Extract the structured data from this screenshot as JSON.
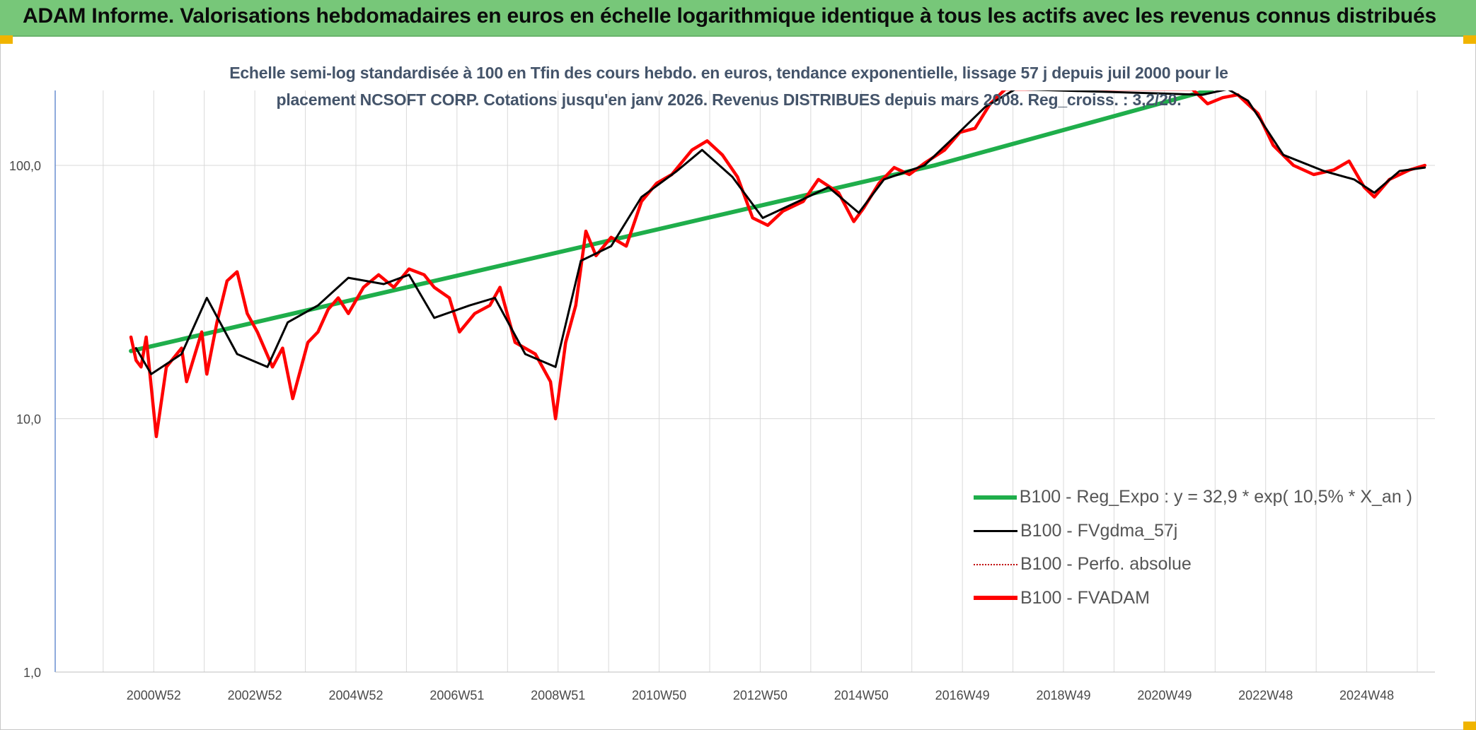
{
  "banner": {
    "title": "ADAM Informe. Valorisations hebdomadaires en euros en échelle logarithmique identique à tous les actifs avec les revenus connus distribués"
  },
  "subtitle": {
    "line1": "Echelle semi-log standardisée à 100 en Tfin des cours hebdo. en euros, tendance exponentielle, lissage 57 j depuis juil 2000 pour le",
    "line2": "placement NCSOFT CORP. Cotations jusqu'en janv 2026. Revenus DISTRIBUES depuis mars 2008. Reg_croiss. : 3,2/20."
  },
  "colors": {
    "banner": "#77c779",
    "regression": "#1fae4b",
    "fvgdma": "#000000",
    "fvadam": "#ff0000",
    "perfo": "#c00000",
    "subtitle": "#44546a"
  },
  "chart_data": {
    "type": "line",
    "y_scale": "log",
    "ylim": [
      1,
      200
    ],
    "y_ticks": [
      "1,0",
      "10,0",
      "100,0"
    ],
    "x_tick_labels": [
      "2000W52",
      "2002W52",
      "2004W52",
      "2006W51",
      "2008W51",
      "2010W50",
      "2012W50",
      "2014W50",
      "2016W49",
      "2018W49",
      "2020W49",
      "2022W48",
      "2024W48"
    ],
    "x_range_years": [
      1999.0,
      2026.3
    ],
    "legend_position": "bottom-right",
    "grid": true,
    "series": [
      {
        "name": "B100 - Reg_Expo : y = 32,9 * exp( 10,5% *  X_an )",
        "key": "regression",
        "points": [
          [
            2000.5,
            18.5
          ],
          [
            2016.4,
            100
          ],
          [
            2021.9,
            200
          ]
        ]
      },
      {
        "name": "B100 - FVgdma_57j",
        "key": "fvgdma",
        "points": [
          [
            2000.6,
            19
          ],
          [
            2000.9,
            15
          ],
          [
            2001.5,
            18
          ],
          [
            2002.0,
            30
          ],
          [
            2002.6,
            18
          ],
          [
            2003.2,
            16
          ],
          [
            2003.6,
            24
          ],
          [
            2004.2,
            28
          ],
          [
            2004.8,
            36
          ],
          [
            2005.5,
            34
          ],
          [
            2006.0,
            37
          ],
          [
            2006.5,
            25
          ],
          [
            2007.2,
            28
          ],
          [
            2007.7,
            30
          ],
          [
            2008.3,
            18
          ],
          [
            2008.9,
            16
          ],
          [
            2009.4,
            42
          ],
          [
            2010.0,
            48
          ],
          [
            2010.6,
            75
          ],
          [
            2011.3,
            95
          ],
          [
            2011.8,
            115
          ],
          [
            2012.4,
            90
          ],
          [
            2013.0,
            62
          ],
          [
            2013.7,
            72
          ],
          [
            2014.3,
            82
          ],
          [
            2014.9,
            65
          ],
          [
            2015.4,
            88
          ],
          [
            2016.2,
            100
          ],
          [
            2016.8,
            130
          ],
          [
            2017.4,
            170
          ],
          [
            2018.0,
            200
          ],
          [
            2021.7,
            190
          ],
          [
            2022.2,
            200
          ],
          [
            2022.6,
            180
          ],
          [
            2023.3,
            110
          ],
          [
            2024.1,
            95
          ],
          [
            2024.7,
            88
          ],
          [
            2025.1,
            78
          ],
          [
            2025.6,
            95
          ],
          [
            2026.1,
            98
          ]
        ]
      },
      {
        "name": "B100 - Perfo. absolue",
        "key": "perfo",
        "points": []
      },
      {
        "name": "B100 - FVADAM",
        "key": "fvadam",
        "points": [
          [
            2000.5,
            21
          ],
          [
            2000.6,
            17
          ],
          [
            2000.7,
            16
          ],
          [
            2000.8,
            21
          ],
          [
            2001.0,
            8.5
          ],
          [
            2001.2,
            16
          ],
          [
            2001.5,
            19
          ],
          [
            2001.6,
            14
          ],
          [
            2001.9,
            22
          ],
          [
            2002.0,
            15
          ],
          [
            2002.2,
            24
          ],
          [
            2002.4,
            35
          ],
          [
            2002.6,
            38
          ],
          [
            2002.8,
            26
          ],
          [
            2003.0,
            22
          ],
          [
            2003.3,
            16
          ],
          [
            2003.5,
            19
          ],
          [
            2003.7,
            12
          ],
          [
            2004.0,
            20
          ],
          [
            2004.2,
            22
          ],
          [
            2004.4,
            27
          ],
          [
            2004.6,
            30
          ],
          [
            2004.8,
            26
          ],
          [
            2005.1,
            33
          ],
          [
            2005.4,
            37
          ],
          [
            2005.7,
            33
          ],
          [
            2006.0,
            39
          ],
          [
            2006.3,
            37
          ],
          [
            2006.5,
            33
          ],
          [
            2006.8,
            30
          ],
          [
            2007.0,
            22
          ],
          [
            2007.3,
            26
          ],
          [
            2007.6,
            28
          ],
          [
            2007.8,
            33
          ],
          [
            2008.1,
            20
          ],
          [
            2008.5,
            18
          ],
          [
            2008.8,
            14
          ],
          [
            2008.9,
            10
          ],
          [
            2009.1,
            20
          ],
          [
            2009.3,
            28
          ],
          [
            2009.5,
            55
          ],
          [
            2009.7,
            44
          ],
          [
            2010.0,
            52
          ],
          [
            2010.3,
            48
          ],
          [
            2010.6,
            72
          ],
          [
            2010.9,
            85
          ],
          [
            2011.2,
            92
          ],
          [
            2011.6,
            115
          ],
          [
            2011.9,
            125
          ],
          [
            2012.2,
            110
          ],
          [
            2012.5,
            90
          ],
          [
            2012.8,
            62
          ],
          [
            2013.1,
            58
          ],
          [
            2013.4,
            66
          ],
          [
            2013.8,
            72
          ],
          [
            2014.1,
            88
          ],
          [
            2014.5,
            78
          ],
          [
            2014.8,
            60
          ],
          [
            2015.0,
            68
          ],
          [
            2015.3,
            85
          ],
          [
            2015.6,
            98
          ],
          [
            2015.9,
            92
          ],
          [
            2016.2,
            102
          ],
          [
            2016.6,
            115
          ],
          [
            2016.9,
            135
          ],
          [
            2017.2,
            140
          ],
          [
            2017.5,
            175
          ],
          [
            2017.8,
            200
          ],
          [
            2021.5,
            200
          ],
          [
            2021.8,
            175
          ],
          [
            2022.1,
            185
          ],
          [
            2022.4,
            190
          ],
          [
            2022.8,
            160
          ],
          [
            2023.1,
            120
          ],
          [
            2023.5,
            100
          ],
          [
            2023.9,
            92
          ],
          [
            2024.3,
            96
          ],
          [
            2024.6,
            104
          ],
          [
            2024.9,
            82
          ],
          [
            2025.1,
            75
          ],
          [
            2025.4,
            88
          ],
          [
            2025.8,
            96
          ],
          [
            2026.1,
            100
          ]
        ]
      }
    ]
  }
}
